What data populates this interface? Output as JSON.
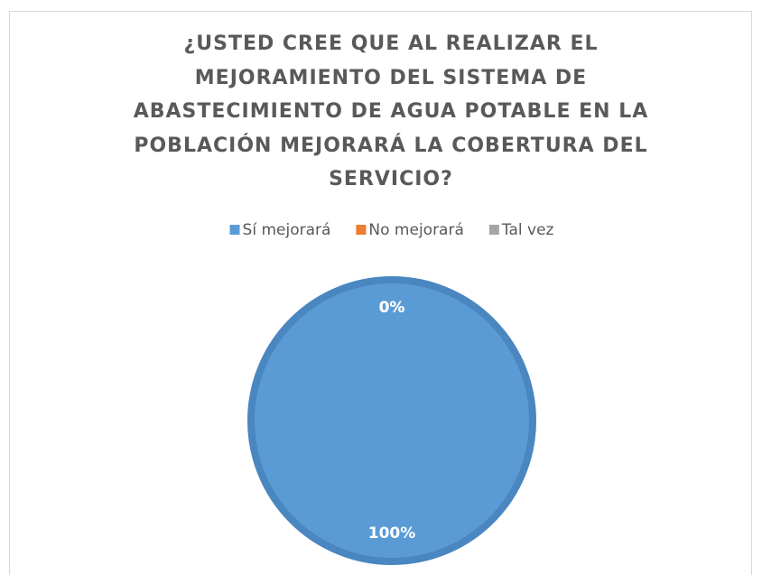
{
  "chart_data": {
    "type": "pie",
    "title": "¿USTED CREE QUE AL REALIZAR EL MEJORAMIENTO DEL SISTEMA DE ABASTECIMIENTO DE AGUA POTABLE EN LA POBLACIÓN MEJORARÁ LA COBERTURA DEL SERVICIO?",
    "categories": [
      "Sí mejorará",
      "No mejorará",
      "Tal vez"
    ],
    "values": [
      100,
      0,
      0
    ],
    "value_labels": [
      "100%",
      "0%",
      "0%"
    ],
    "colors": [
      "#5b9bd5",
      "#ed7d31",
      "#a5a5a5"
    ],
    "legend": "top"
  }
}
